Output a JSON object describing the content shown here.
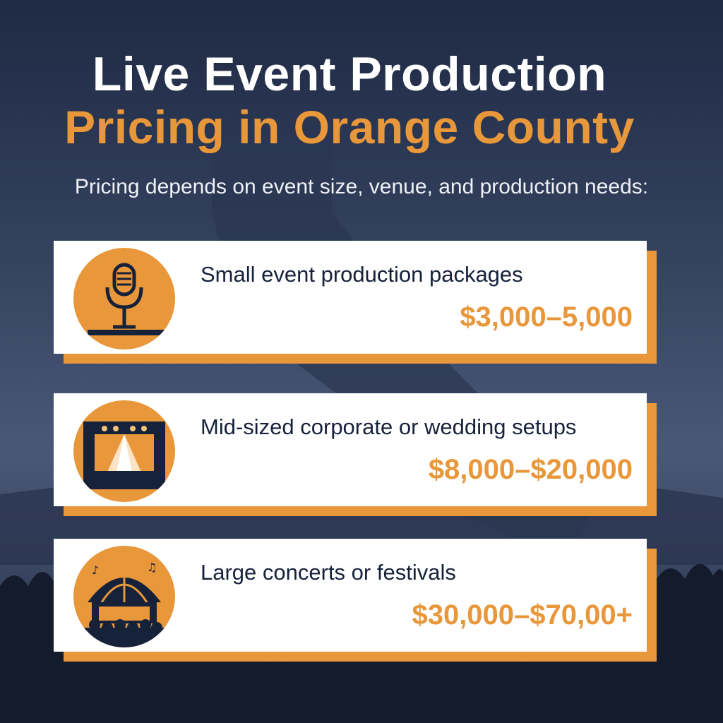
{
  "header": {
    "title_line1": "Live Event Production",
    "title_line2": "Pricing in Orange County",
    "subtitle": "Pricing depends on event size, venue, and production needs:"
  },
  "colors": {
    "accent": "#e8973a",
    "navy": "#16213a",
    "background": "#34425f"
  },
  "tiers": [
    {
      "label": "Small event production packages",
      "price": "$3,000–5,000",
      "icon": "microphone-icon"
    },
    {
      "label": "Mid-sized corporate or wedding setups",
      "price": "$8,000–$20,000",
      "icon": "stage-lights-icon"
    },
    {
      "label": "Large concerts or festivals",
      "price": "$30,000–$70,00+",
      "icon": "festival-tent-icon"
    }
  ]
}
